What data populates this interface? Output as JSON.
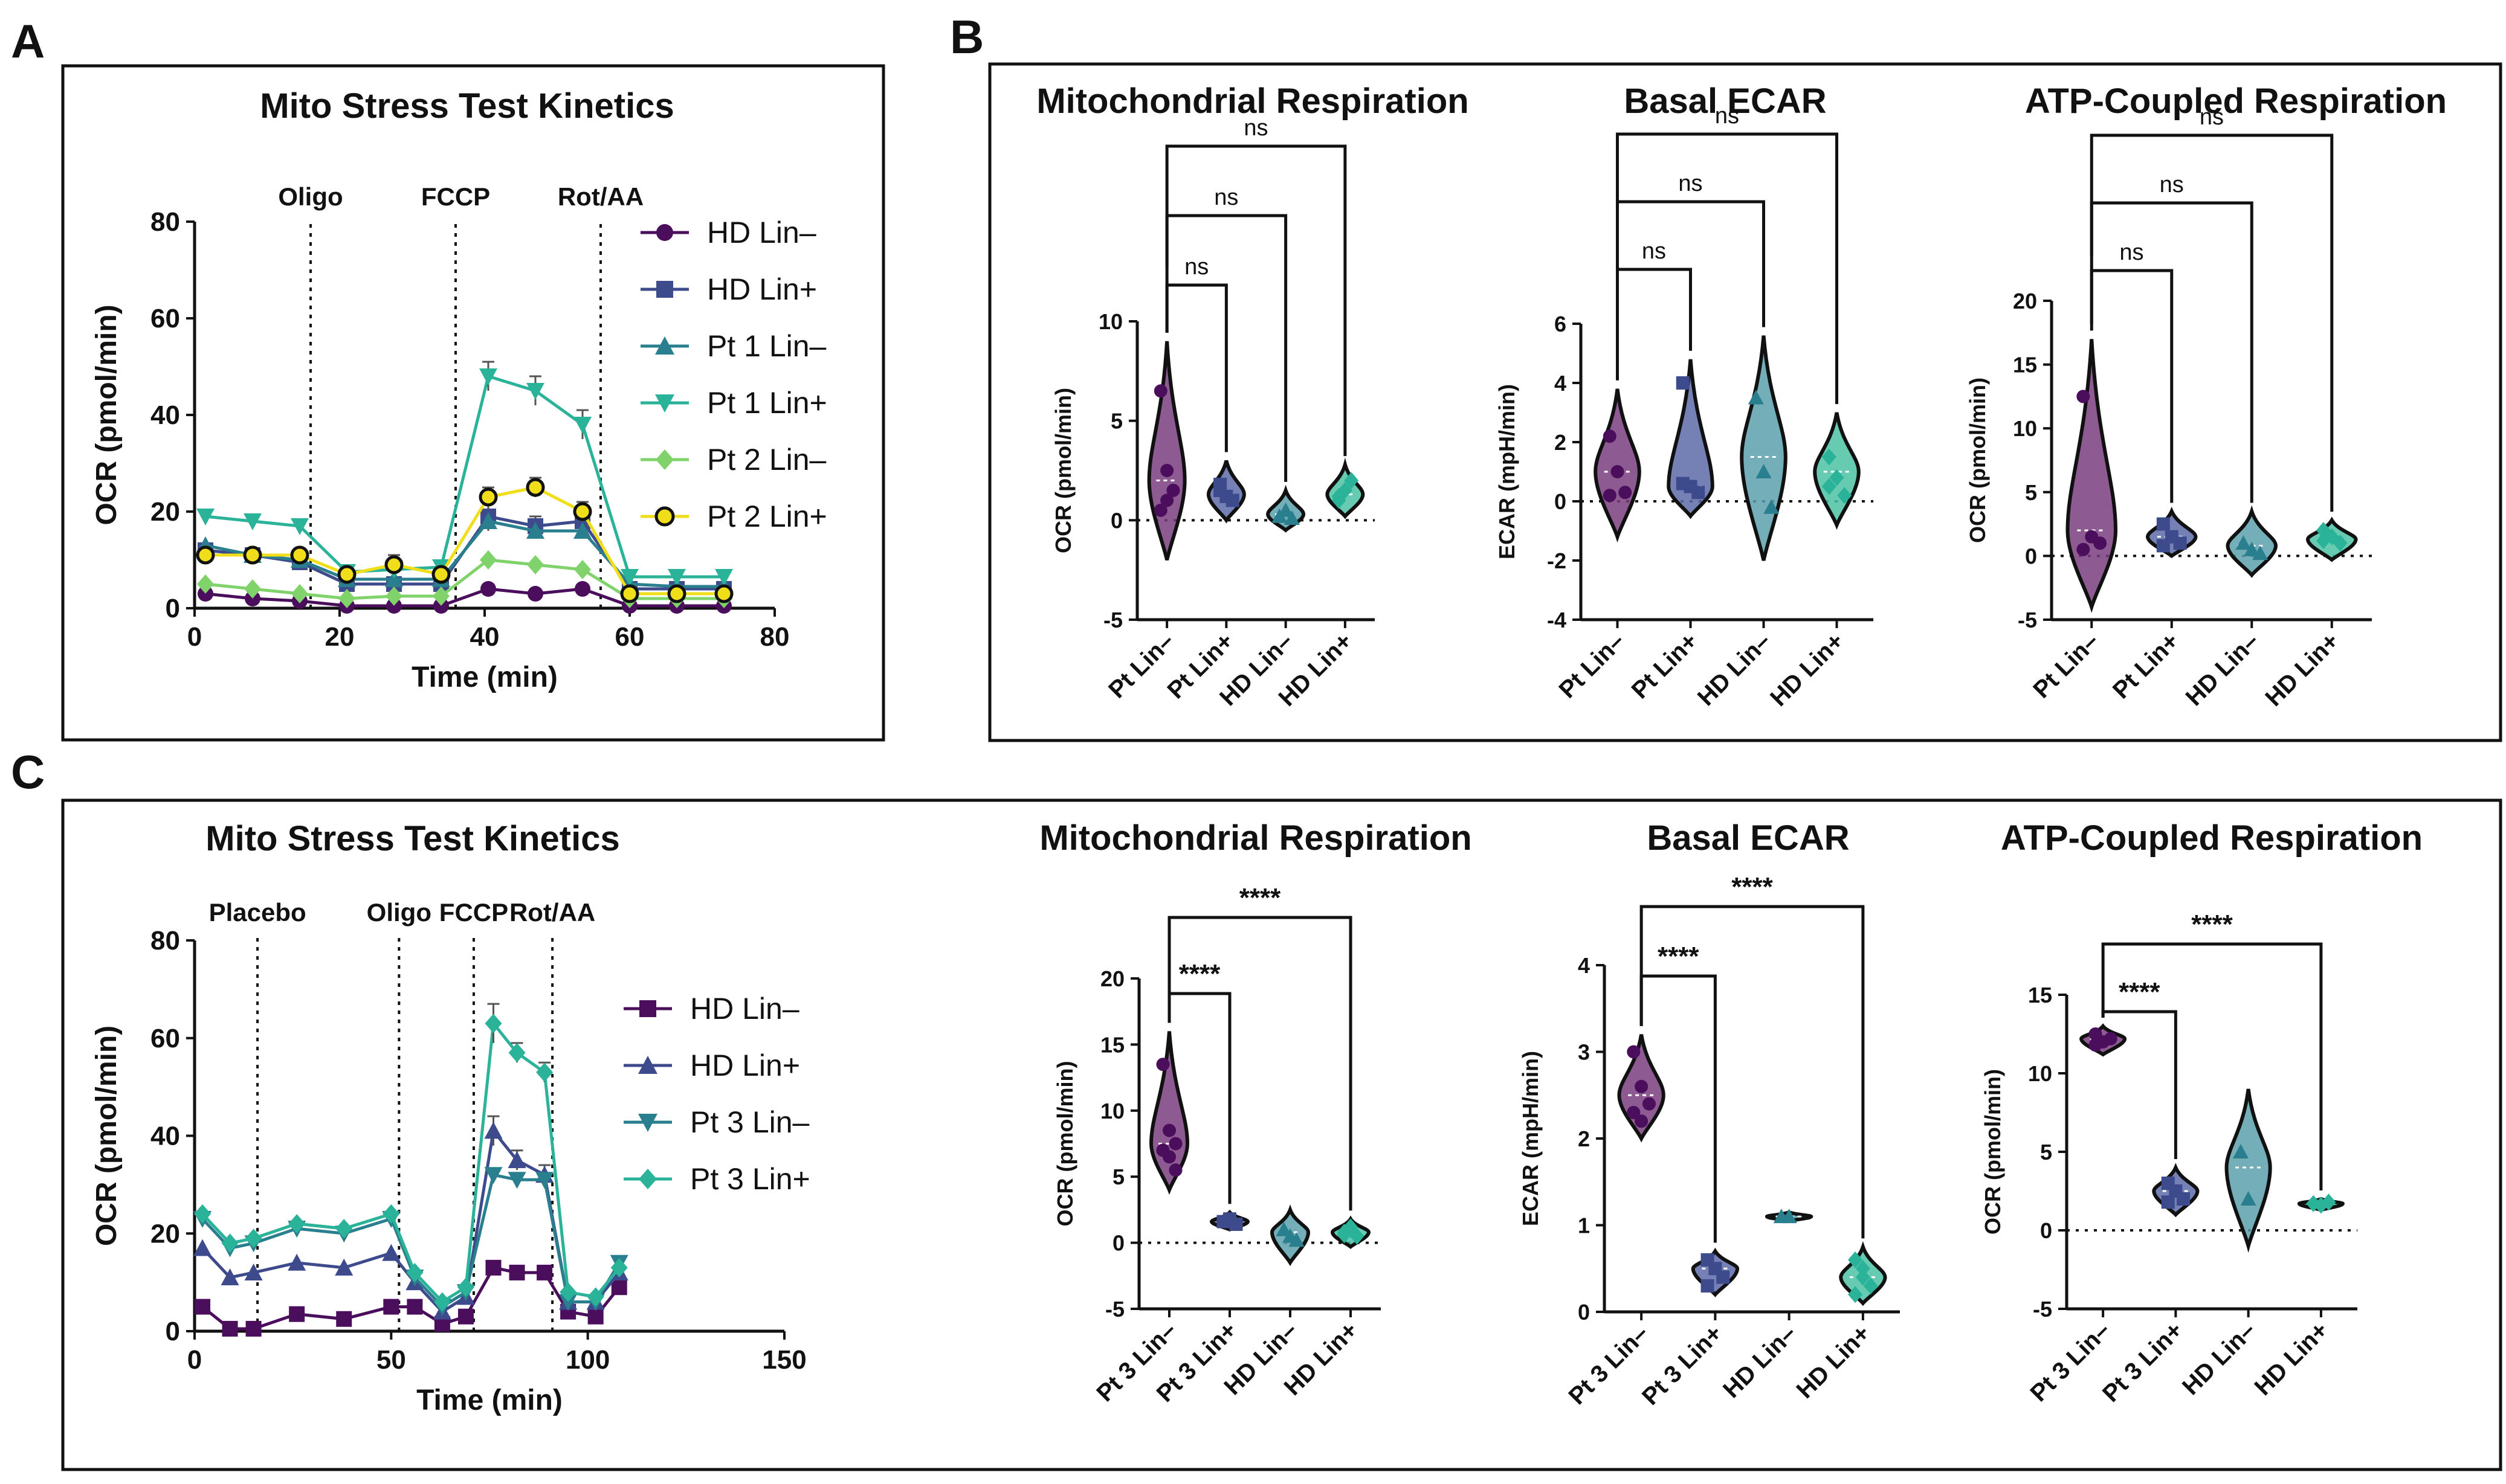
{
  "panel_labels": {
    "a": "A",
    "b": "B",
    "c": "C"
  },
  "colors": {
    "purple": "#4a0e5c",
    "indigo": "#3d4a8c",
    "teal": "#2a7f8e",
    "cyan": "#2bb39a",
    "green": "#7fd36a",
    "yellow": "#f0de1a",
    "violin_purple": "#7a3d7f",
    "violin_indigo": "#5d6aa8",
    "violin_teal": "#5aa0ad",
    "violin_cyan": "#4cc2a5"
  },
  "chart_data": [
    {
      "id": "A",
      "type": "line",
      "title": "Mito Stress Test Kinetics",
      "xlabel": "Time (min)",
      "ylabel": "OCR (pmol/min)",
      "xlim": [
        0,
        80
      ],
      "ylim": [
        0,
        80
      ],
      "xticks": [
        0,
        20,
        40,
        60,
        80
      ],
      "yticks": [
        0,
        20,
        40,
        60,
        80
      ],
      "injections": [
        {
          "label": "Oligo",
          "x": 16
        },
        {
          "label": "FCCP",
          "x": 36
        },
        {
          "label": "Rot/AA",
          "x": 56
        }
      ],
      "x": [
        1.5,
        8,
        14.5,
        21,
        27.5,
        34,
        40.5,
        47,
        53.5,
        60,
        66.5,
        73
      ],
      "series": [
        {
          "name": "HD Lin–",
          "marker": "circle",
          "color": "#4a0e5c",
          "values": [
            3,
            2,
            1.5,
            0.5,
            0.5,
            0.5,
            4,
            3,
            4,
            0.5,
            0.5,
            0.5
          ]
        },
        {
          "name": "HD Lin+",
          "marker": "square",
          "color": "#3d4a8c",
          "values": [
            12,
            11,
            9.5,
            5,
            5,
            5,
            19,
            17,
            18,
            4,
            4,
            4
          ],
          "errors": [
            0,
            0,
            0,
            0,
            0,
            0,
            3,
            2,
            2,
            0,
            0,
            0
          ]
        },
        {
          "name": "Pt 1 Lin–",
          "marker": "triangle",
          "color": "#2a7f8e",
          "values": [
            13,
            11,
            10,
            6,
            6,
            6,
            18,
            16,
            16,
            5,
            4.5,
            4.5
          ]
        },
        {
          "name": "Pt 1 Lin+",
          "marker": "triangle-down",
          "color": "#2bb39a",
          "values": [
            19,
            18,
            17,
            7.5,
            8,
            8.5,
            48,
            45,
            38,
            6.5,
            6.5,
            6.5
          ],
          "errors": [
            0,
            0,
            0,
            0,
            0,
            0,
            3,
            3,
            3,
            0,
            0,
            0
          ]
        },
        {
          "name": "Pt 2 Lin–",
          "marker": "diamond",
          "color": "#7fd36a",
          "values": [
            5,
            4,
            3,
            2,
            2.5,
            2.5,
            10,
            9,
            8,
            2,
            2,
            2
          ]
        },
        {
          "name": "Pt 2 Lin+",
          "marker": "circle-open",
          "color": "#f0de1a",
          "values": [
            11,
            11,
            11,
            7,
            9,
            7,
            23,
            25,
            20,
            3,
            3,
            3
          ],
          "errors": [
            0,
            0,
            0,
            0,
            2,
            0,
            2,
            2,
            2,
            0,
            0,
            0
          ]
        }
      ]
    },
    {
      "id": "B1",
      "type": "violin",
      "title": "Mitochondrial Respiration",
      "ylabel": "OCR (pmol/min)",
      "ylim": [
        -5,
        10
      ],
      "yticks": [
        -5,
        0,
        5,
        10
      ],
      "categories": [
        "Pt Lin–",
        "Pt Lin+",
        "HD Lin–",
        "HD Lin+"
      ],
      "violins": [
        {
          "min": -2,
          "max": 9,
          "mode": 2,
          "points": [
            6.5,
            2.5,
            1.5,
            0.5,
            1.0
          ]
        },
        {
          "min": 0,
          "max": 3,
          "mode": 1.3,
          "points": [
            1.8,
            1.2,
            1.0,
            1.5
          ]
        },
        {
          "min": -0.5,
          "max": 1.5,
          "mode": 0.3,
          "points": [
            0.2,
            0.5,
            0.1
          ]
        },
        {
          "min": 0.2,
          "max": 2.8,
          "mode": 1.3,
          "points": [
            1.0,
            1.5,
            2.0,
            1.2
          ]
        }
      ],
      "comparisons": [
        {
          "from": 0,
          "to": 1,
          "label": "ns"
        },
        {
          "from": 0,
          "to": 2,
          "label": "ns"
        },
        {
          "from": 0,
          "to": 3,
          "label": "ns"
        }
      ]
    },
    {
      "id": "B2",
      "type": "violin",
      "title": "Basal ECAR",
      "ylabel": "ECAR (mpH/min)",
      "ylim": [
        -4,
        6
      ],
      "yticks": [
        -4,
        -2,
        0,
        2,
        4,
        6
      ],
      "categories": [
        "Pt Lin–",
        "Pt Lin+",
        "HD Lin–",
        "HD Lin+"
      ],
      "violins": [
        {
          "min": -1.2,
          "max": 3.8,
          "mode": 1.0,
          "points": [
            2.2,
            1.0,
            0.3,
            0.2
          ]
        },
        {
          "min": -0.5,
          "max": 4.8,
          "mode": 0.5,
          "points": [
            4.0,
            0.5,
            0.3,
            0.6
          ]
        },
        {
          "min": -2.0,
          "max": 5.6,
          "mode": 1.5,
          "points": [
            3.5,
            1.0,
            -0.2
          ]
        },
        {
          "min": -0.8,
          "max": 3.0,
          "mode": 1.0,
          "points": [
            1.5,
            0.8,
            0.2,
            0.5
          ]
        }
      ],
      "comparisons": [
        {
          "from": 0,
          "to": 1,
          "label": "ns"
        },
        {
          "from": 0,
          "to": 2,
          "label": "ns"
        },
        {
          "from": 0,
          "to": 3,
          "label": "ns"
        }
      ]
    },
    {
      "id": "B3",
      "type": "violin",
      "title": "ATP-Coupled Respiration",
      "ylabel": "OCR (pmol/min)",
      "ylim": [
        -5,
        20
      ],
      "yticks": [
        -5,
        0,
        5,
        10,
        15,
        20
      ],
      "categories": [
        "Pt Lin–",
        "Pt Lin+",
        "HD Lin–",
        "HD Lin+"
      ],
      "violins": [
        {
          "min": -4,
          "max": 17,
          "mode": 2,
          "points": [
            12.5,
            1.5,
            1.0,
            0.5
          ]
        },
        {
          "min": 0,
          "max": 3.5,
          "mode": 1.5,
          "points": [
            2.5,
            1.5,
            1.0,
            0.8
          ]
        },
        {
          "min": -1.5,
          "max": 3.5,
          "mode": 0.8,
          "points": [
            1.0,
            0.5,
            0.2
          ]
        },
        {
          "min": -0.3,
          "max": 2.8,
          "mode": 1.3,
          "points": [
            2.0,
            1.5,
            1.0,
            1.2
          ]
        }
      ],
      "comparisons": [
        {
          "from": 0,
          "to": 1,
          "label": "ns"
        },
        {
          "from": 0,
          "to": 2,
          "label": "ns"
        },
        {
          "from": 0,
          "to": 3,
          "label": "ns"
        }
      ]
    },
    {
      "id": "C0",
      "type": "line",
      "title": "Mito Stress Test Kinetics",
      "xlabel": "Time (min)",
      "ylabel": "OCR (pmol/min)",
      "xlim": [
        0,
        150
      ],
      "ylim": [
        0,
        80
      ],
      "xticks": [
        0,
        50,
        100,
        150
      ],
      "yticks": [
        0,
        20,
        40,
        60,
        80
      ],
      "injections": [
        {
          "label": "Placebo",
          "x": 16
        },
        {
          "label": "Oligo",
          "x": 52
        },
        {
          "label": "FCCP",
          "x": 71
        },
        {
          "label": "Rot/AA",
          "x": 91
        }
      ],
      "x": [
        2,
        9,
        15,
        26,
        38,
        50,
        56,
        63,
        69,
        76,
        82,
        89,
        95,
        102,
        108
      ],
      "series": [
        {
          "name": "HD Lin–",
          "marker": "square",
          "color": "#4a0e5c",
          "values": [
            5,
            0.5,
            0.5,
            3.5,
            2.5,
            5,
            5,
            1.5,
            3,
            13,
            12,
            12,
            4,
            3,
            9
          ]
        },
        {
          "name": "HD Lin+",
          "marker": "triangle",
          "color": "#3d4a8c",
          "values": [
            17,
            11,
            12,
            14,
            13,
            16,
            10,
            4,
            7,
            41,
            35,
            32,
            6,
            6,
            12
          ],
          "errors": [
            0,
            0,
            0,
            0,
            0,
            0,
            0,
            0,
            0,
            3,
            2,
            2,
            0,
            0,
            0
          ]
        },
        {
          "name": "Pt 3 Lin–",
          "marker": "triangle-down",
          "color": "#2a7f8e",
          "values": [
            23,
            17,
            18,
            21,
            20,
            23,
            11,
            5,
            8,
            32,
            31,
            31,
            6,
            6,
            14
          ]
        },
        {
          "name": "Pt 3 Lin+",
          "marker": "diamond",
          "color": "#2bb39a",
          "values": [
            24,
            18,
            19,
            22,
            21,
            24,
            12,
            6,
            9,
            63,
            57,
            53,
            8,
            7,
            13
          ],
          "errors": [
            0,
            0,
            0,
            0,
            0,
            0,
            0,
            0,
            0,
            4,
            2,
            2,
            0,
            0,
            0
          ]
        }
      ]
    },
    {
      "id": "C1",
      "type": "violin",
      "title": "Mitochondrial Respiration",
      "ylabel": "OCR (pmol/min)",
      "ylim": [
        -5,
        20
      ],
      "yticks": [
        -5,
        0,
        5,
        10,
        15,
        20
      ],
      "categories": [
        "Pt 3 Lin–",
        "Pt 3 Lin+",
        "HD Lin–",
        "HD Lin+"
      ],
      "violins": [
        {
          "min": 4,
          "max": 16,
          "mode": 7.5,
          "points": [
            13.5,
            8.5,
            7.5,
            7.0,
            6.5,
            5.5
          ]
        },
        {
          "min": 1,
          "max": 2.3,
          "mode": 1.6,
          "points": [
            1.6,
            1.8,
            1.4
          ]
        },
        {
          "min": -1.5,
          "max": 2.5,
          "mode": 0.8,
          "points": [
            1.0,
            0.5,
            0.2
          ]
        },
        {
          "min": -0.3,
          "max": 1.8,
          "mode": 0.8,
          "points": [
            0.8,
            1.0,
            0.5,
            0.6,
            1.2
          ]
        }
      ],
      "comparisons": [
        {
          "from": 0,
          "to": 1,
          "label": "****"
        },
        {
          "from": 0,
          "to": 3,
          "label": "****"
        }
      ]
    },
    {
      "id": "C2",
      "type": "violin",
      "title": "Basal ECAR",
      "ylabel": "ECAR (mpH/min)",
      "ylim": [
        0,
        4
      ],
      "yticks": [
        0,
        1,
        2,
        3,
        4
      ],
      "categories": [
        "Pt 3 Lin–",
        "Pt 3 Lin+",
        "HD Lin–",
        "HD Lin+"
      ],
      "violins": [
        {
          "min": 2.0,
          "max": 3.2,
          "mode": 2.5,
          "points": [
            3.0,
            2.6,
            2.4,
            2.3,
            2.2
          ]
        },
        {
          "min": 0.2,
          "max": 0.7,
          "mode": 0.5,
          "points": [
            0.6,
            0.5,
            0.4,
            0.3
          ]
        },
        {
          "min": 1.05,
          "max": 1.15,
          "mode": 1.1,
          "points": [
            1.1,
            1.1
          ]
        },
        {
          "min": 0.1,
          "max": 0.75,
          "mode": 0.4,
          "points": [
            0.6,
            0.4,
            0.3,
            0.2,
            0.5
          ]
        }
      ],
      "comparisons": [
        {
          "from": 0,
          "to": 1,
          "label": "****"
        },
        {
          "from": 0,
          "to": 3,
          "label": "****"
        }
      ]
    },
    {
      "id": "C3",
      "type": "violin",
      "title": "ATP-Coupled Respiration",
      "ylabel": "OCR (pmol/min)",
      "ylim": [
        -5,
        15
      ],
      "yticks": [
        -5,
        0,
        5,
        10,
        15
      ],
      "categories": [
        "Pt 3 Lin–",
        "Pt 3 Lin+",
        "HD Lin–",
        "HD Lin+"
      ],
      "violins": [
        {
          "min": 11.2,
          "max": 13.0,
          "mode": 12.2,
          "points": [
            12.5,
            12.0,
            12.2,
            11.8
          ]
        },
        {
          "min": 1.0,
          "max": 4.0,
          "mode": 2.5,
          "points": [
            3.0,
            2.5,
            2.0,
            1.8
          ]
        },
        {
          "min": -1.0,
          "max": 9.0,
          "mode": 4.0,
          "points": [
            5.0,
            2.0
          ]
        },
        {
          "min": 1.3,
          "max": 2.0,
          "mode": 1.7,
          "points": [
            1.7,
            1.6,
            1.8
          ]
        }
      ],
      "comparisons": [
        {
          "from": 0,
          "to": 1,
          "label": "****"
        },
        {
          "from": 0,
          "to": 3,
          "label": "****"
        }
      ]
    }
  ]
}
